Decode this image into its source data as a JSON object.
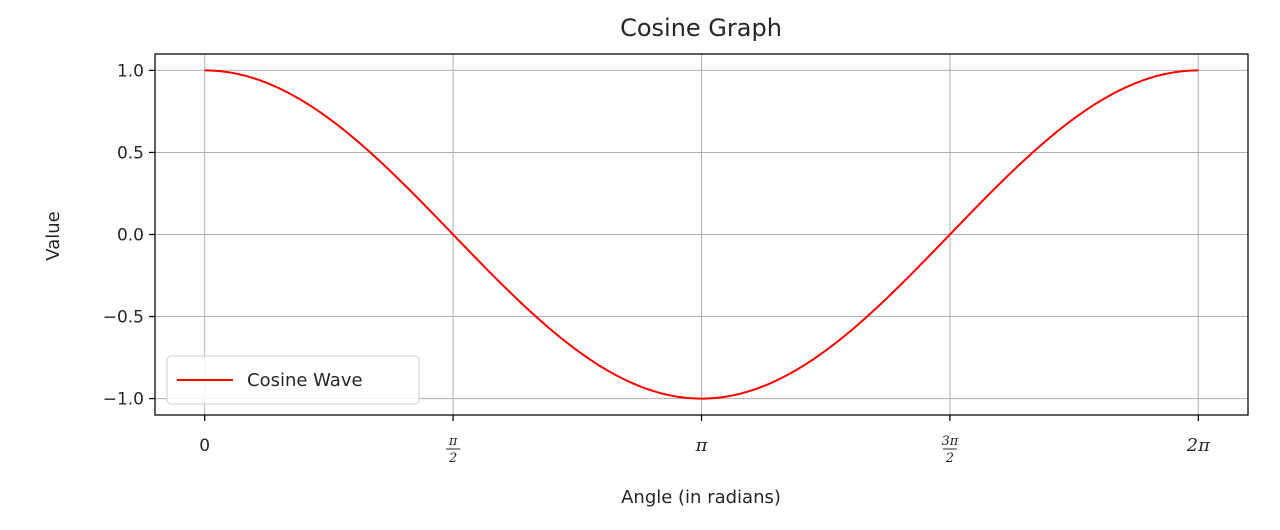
{
  "chart_data": {
    "type": "line",
    "title": "Cosine Graph",
    "xlabel": "Angle (in radians)",
    "ylabel": "Value",
    "xlim": [
      -0.3142,
      6.5973
    ],
    "ylim": [
      -1.1,
      1.1
    ],
    "grid": true,
    "legend_position": "lower-left",
    "xticks": [
      {
        "value": 0,
        "label": "0"
      },
      {
        "value": 1.5708,
        "label": "π/2"
      },
      {
        "value": 3.1416,
        "label": "π"
      },
      {
        "value": 4.7124,
        "label": "3π/2"
      },
      {
        "value": 6.2832,
        "label": "2π"
      }
    ],
    "yticks": [
      {
        "value": 1.0,
        "label": "1.0"
      },
      {
        "value": 0.5,
        "label": "0.5"
      },
      {
        "value": 0.0,
        "label": "0.0"
      },
      {
        "value": -0.5,
        "label": "−0.5"
      },
      {
        "value": -1.0,
        "label": "−1.0"
      }
    ],
    "series": [
      {
        "name": "Cosine Wave",
        "color": "#ff0000",
        "function": "cos(x)",
        "x_range": [
          0,
          6.2832
        ]
      }
    ]
  }
}
